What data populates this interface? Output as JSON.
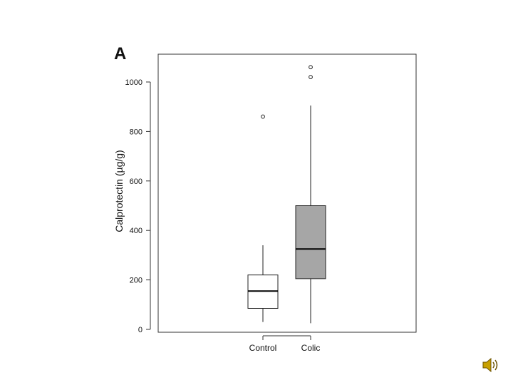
{
  "panel_label": "A",
  "chart_data": {
    "type": "box",
    "title": "",
    "xlabel": "",
    "ylabel": "Calprotectin (µg/g)",
    "ylim": [
      0,
      1100
    ],
    "yticks": [
      0,
      200,
      400,
      600,
      800,
      1000
    ],
    "grid": false,
    "categories": [
      "Control",
      "Colic"
    ],
    "boxes": [
      {
        "category": "Control",
        "whisker_low": 30,
        "q1": 85,
        "median": 155,
        "q3": 220,
        "whisker_high": 340,
        "outliers": [
          860
        ],
        "fill": "#ffffff"
      },
      {
        "category": "Colic",
        "whisker_low": 25,
        "q1": 205,
        "median": 325,
        "q3": 500,
        "whisker_high": 905,
        "outliers": [
          1020,
          1060
        ],
        "fill": "#a6a6a6"
      }
    ]
  },
  "icons": {
    "speaker": "speaker-icon"
  }
}
